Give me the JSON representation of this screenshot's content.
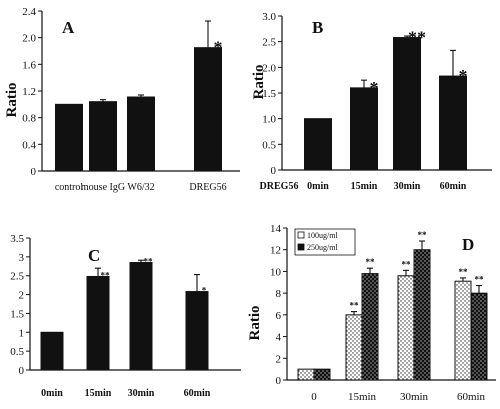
{
  "chart_data": [
    {
      "panel": "A",
      "type": "bar",
      "ylabel": "Ratio",
      "ylim": [
        0,
        2.4
      ],
      "yticks": [
        "0",
        "0.4",
        "0.8",
        "1.2",
        "1.6",
        "2.0",
        "2.4"
      ],
      "categories": [
        "control",
        "mouse IgG",
        "W6/32",
        "DREG56"
      ],
      "values": [
        1.0,
        1.04,
        1.11,
        1.85
      ],
      "errors": [
        0,
        0.03,
        0.03,
        0.4
      ],
      "annotations": [
        "",
        "",
        "",
        "*"
      ]
    },
    {
      "panel": "B",
      "type": "bar",
      "ylabel": "Ratio",
      "ylim": [
        0,
        3.0
      ],
      "yticks": [
        "0",
        "0.5",
        "1.0",
        "1.5",
        "2.0",
        "2.5",
        "3.0"
      ],
      "xprefix": "DREG56",
      "categories": [
        "0min",
        "15min",
        "30min",
        "60min"
      ],
      "values": [
        1.0,
        1.6,
        2.58,
        1.83
      ],
      "errors": [
        0,
        0.15,
        0.03,
        0.5
      ],
      "annotations": [
        "",
        "*",
        "**",
        "*"
      ]
    },
    {
      "panel": "C",
      "type": "bar",
      "ylim": [
        0,
        3.5
      ],
      "yticks": [
        "0",
        "0.5",
        "1",
        "1.5",
        "2",
        "2.5",
        "3",
        "3.5"
      ],
      "categories": [
        "0min",
        "15min",
        "30min",
        "60min"
      ],
      "values": [
        1.0,
        2.48,
        2.85,
        2.08
      ],
      "errors": [
        0,
        0.22,
        0.06,
        0.45
      ],
      "annotations": [
        "",
        "**",
        "**",
        "*"
      ]
    },
    {
      "panel": "D",
      "type": "bar",
      "ylabel": "Ratio",
      "ylim": [
        0,
        14
      ],
      "yticks": [
        "0",
        "2",
        "4",
        "6",
        "8",
        "10",
        "12",
        "14"
      ],
      "categories": [
        "0",
        "15min",
        "30min",
        "60min"
      ],
      "series": [
        {
          "name": "100ug/ml",
          "values": [
            1.0,
            6.0,
            9.6,
            9.1
          ],
          "errors": [
            0,
            0.3,
            0.5,
            0.3
          ],
          "annotations": [
            "",
            "**",
            "**",
            "**"
          ]
        },
        {
          "name": "250ug/ml",
          "values": [
            1.0,
            9.8,
            12.0,
            8.0
          ],
          "errors": [
            0,
            0.5,
            0.8,
            0.7
          ],
          "annotations": [
            "",
            "**",
            "**",
            "**"
          ]
        }
      ]
    }
  ]
}
